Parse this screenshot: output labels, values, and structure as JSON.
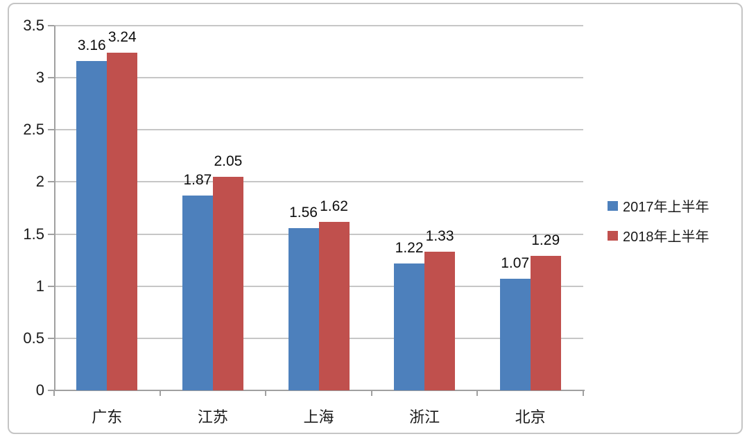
{
  "chart_data": {
    "type": "bar",
    "title": "",
    "xlabel": "",
    "ylabel": "",
    "categories": [
      "广东",
      "江苏",
      "上海",
      "浙江",
      "北京"
    ],
    "series": [
      {
        "name": "2017年上半年",
        "color": "#4D80BC",
        "values": [
          3.16,
          1.87,
          1.56,
          1.22,
          1.07
        ]
      },
      {
        "name": "2018年上半年",
        "color": "#C0504D",
        "values": [
          3.24,
          2.05,
          1.62,
          1.33,
          1.29
        ]
      }
    ],
    "data_labels": {
      "2017": [
        "3.16",
        "1.87",
        "1.56",
        "1.22",
        "1.07"
      ],
      "2018": [
        "3.24",
        "2.05",
        "1.62",
        "1.33",
        "1.29"
      ]
    },
    "ylim": [
      0,
      3.5
    ],
    "ytick_step": 0.5,
    "yticks": [
      "0",
      "0.5",
      "1",
      "1.5",
      "2",
      "2.5",
      "3",
      "3.5"
    ],
    "grid": true,
    "legend_position": "right"
  },
  "style": {
    "bar_colors": {
      "series_2017": "#4D80BC",
      "series_2018": "#C0504D"
    },
    "gridline_color": "#c6c6c6",
    "axis_color": "#a0a0a0",
    "frame_border_color": "#c5c5c5",
    "text_color": "#1a1a1a"
  }
}
